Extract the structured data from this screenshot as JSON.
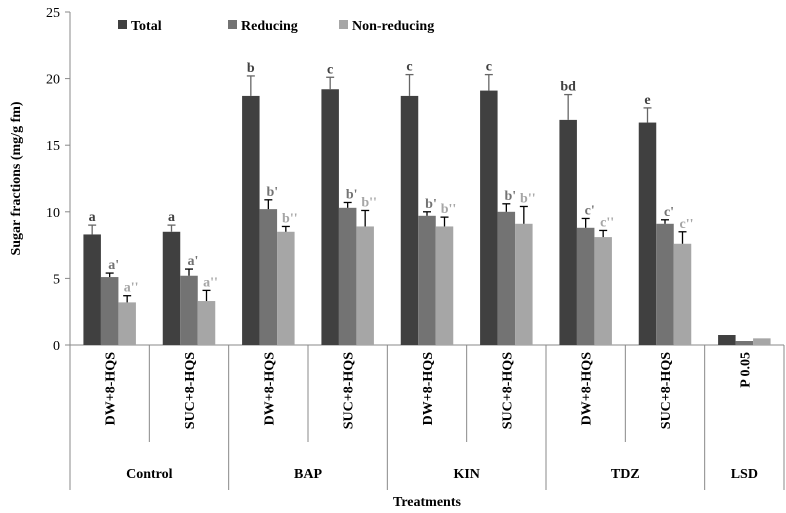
{
  "chart_data": {
    "type": "bar",
    "ylabel": "Sugar fractions (mg/g fm)",
    "xlabel": "Treatments",
    "ylim": [
      0,
      25
    ],
    "yticks": [
      0,
      5,
      10,
      15,
      20,
      25
    ],
    "legend_position": "top-left",
    "groups": [
      {
        "name": "Control",
        "categories": [
          "DW+8-HQS",
          "SUC+8-HQS"
        ]
      },
      {
        "name": "BAP",
        "categories": [
          "DW+8-HQS",
          "SUC+8-HQS"
        ]
      },
      {
        "name": "KIN",
        "categories": [
          "DW+8-HQS",
          "SUC+8-HQS"
        ]
      },
      {
        "name": "TDZ",
        "categories": [
          "DW+8-HQS",
          "SUC+8-HQS"
        ]
      },
      {
        "name": "LSD",
        "categories": [
          "P 0.05"
        ]
      }
    ],
    "series": [
      {
        "name": "Total",
        "color": "#404040",
        "values": [
          8.3,
          8.5,
          18.7,
          19.2,
          18.7,
          19.1,
          16.9,
          16.7,
          0.75
        ],
        "errors": [
          0.7,
          0.5,
          1.5,
          0.9,
          1.6,
          1.2,
          1.9,
          1.1,
          null
        ],
        "letters": [
          "a",
          "a",
          "b",
          "c",
          "c",
          "c",
          "bd",
          "e",
          ""
        ]
      },
      {
        "name": "Reducing",
        "color": "#737373",
        "values": [
          5.1,
          5.2,
          10.2,
          10.3,
          9.7,
          10.0,
          8.8,
          9.1,
          0.3
        ],
        "errors": [
          0.3,
          0.5,
          0.7,
          0.4,
          0.3,
          0.6,
          0.7,
          0.3,
          null
        ],
        "letters": [
          "a'",
          "a'",
          "b'",
          "b'",
          "b'",
          "b'",
          "c'",
          "c'",
          ""
        ]
      },
      {
        "name": "Non-reducing",
        "color": "#a6a6a6",
        "values": [
          3.2,
          3.3,
          8.5,
          8.9,
          8.9,
          9.1,
          8.1,
          7.6,
          0.5
        ],
        "errors": [
          0.5,
          0.8,
          0.4,
          1.2,
          0.7,
          1.3,
          0.5,
          0.9,
          null
        ],
        "letters": [
          "a''",
          "a''",
          "b''",
          "b''",
          "b''",
          "b''",
          "c''",
          "c''",
          ""
        ]
      }
    ]
  }
}
